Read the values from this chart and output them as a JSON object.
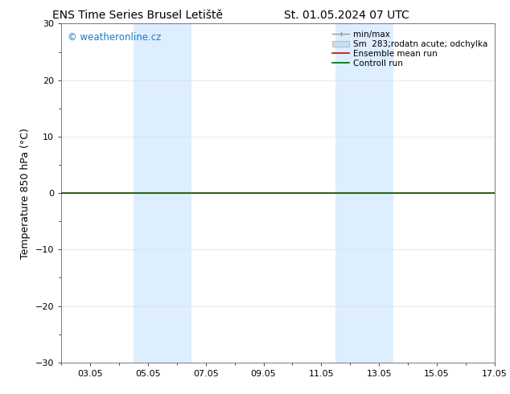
{
  "title_left": "ENS Time Series Brusel Letiště",
  "title_right": "St. 01.05.2024 07 UTC",
  "ylabel": "Temperature 850 hPa (°C)",
  "xlabel": "",
  "ylim": [
    -30,
    30
  ],
  "yticks": [
    -30,
    -20,
    -10,
    0,
    10,
    20,
    30
  ],
  "xtick_labels": [
    "03.05",
    "05.05",
    "07.05",
    "09.05",
    "11.05",
    "13.05",
    "15.05",
    "17.05"
  ],
  "xtick_positions": [
    2,
    4,
    6,
    8,
    10,
    12,
    14,
    16
  ],
  "xlim": [
    1,
    16
  ],
  "background_color": "#ffffff",
  "plot_bg_color": "#ffffff",
  "shade_bands": [
    {
      "xstart": 3.5,
      "xend": 5.5,
      "color": "#ddeeff"
    },
    {
      "xstart": 10.5,
      "xend": 12.5,
      "color": "#ddeeff"
    }
  ],
  "flat_line_y": 0.0,
  "flat_line_color_ensemble": "#cc0000",
  "flat_line_color_control": "#006600",
  "watermark_text": "© weatheronline.cz",
  "watermark_color": "#1a7abf",
  "legend_labels": [
    "min/max",
    "Sm  283;rodatn acute; odchylka",
    "Ensemble mean run",
    "Controll run"
  ],
  "legend_colors": [
    "#999999",
    "#c5dff0",
    "#cc0000",
    "#006600"
  ],
  "title_fontsize": 10,
  "tick_fontsize": 8,
  "ylabel_fontsize": 9,
  "legend_fontsize": 7.5,
  "watermark_fontsize": 8.5
}
